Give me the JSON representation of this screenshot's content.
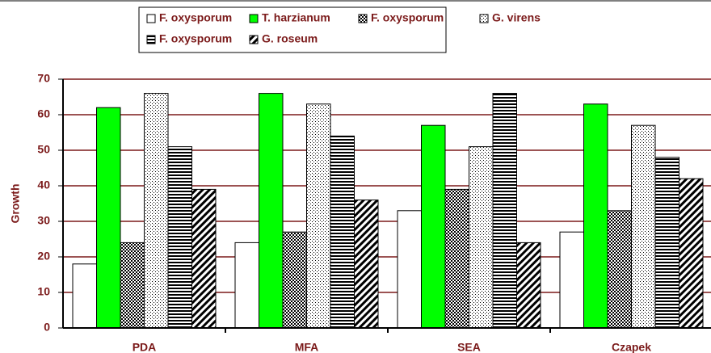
{
  "chart_data": {
    "type": "bar",
    "y_label": "Growth",
    "categories": [
      "PDA",
      "MFA",
      "SEA",
      "Czapek"
    ],
    "series": [
      {
        "name": "F. oxysporum",
        "color": "#ffffff",
        "pattern": "none",
        "values": [
          18,
          24,
          33,
          27
        ]
      },
      {
        "name": "T. harzianum",
        "color": "#00ff00",
        "pattern": "none",
        "values": [
          62,
          66,
          57,
          63
        ]
      },
      {
        "name": "F. oxysporum",
        "color": "#ffffff",
        "pattern": "checker",
        "values": [
          24,
          27,
          39,
          33
        ]
      },
      {
        "name": "G. virens",
        "color": "#ffffff",
        "pattern": "dots",
        "values": [
          66,
          63,
          51,
          57
        ]
      },
      {
        "name": "F. oxysporum",
        "color": "#ffffff",
        "pattern": "hlines",
        "values": [
          51,
          54,
          66,
          48
        ]
      },
      {
        "name": "G. roseum",
        "color": "#ffffff",
        "pattern": "diagonal",
        "values": [
          39,
          36,
          24,
          42
        ]
      }
    ],
    "ylim": [
      0,
      70
    ],
    "yticks": [
      0,
      10,
      20,
      30,
      40,
      50,
      60,
      70
    ],
    "grid": true,
    "grid_color": "#7b1a1a"
  }
}
